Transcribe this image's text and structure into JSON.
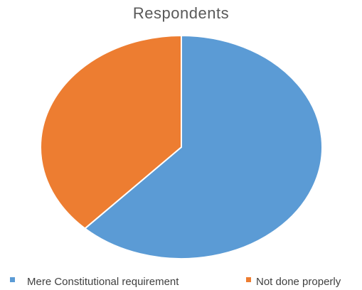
{
  "chart_data": {
    "type": "pie",
    "title": "Respondents",
    "categories": [
      "Mere Constitutional requirement",
      "Not done properly"
    ],
    "values": [
      62,
      38
    ],
    "colors": [
      "#5b9bd5",
      "#ed7d31"
    ],
    "legend": "bottom"
  }
}
